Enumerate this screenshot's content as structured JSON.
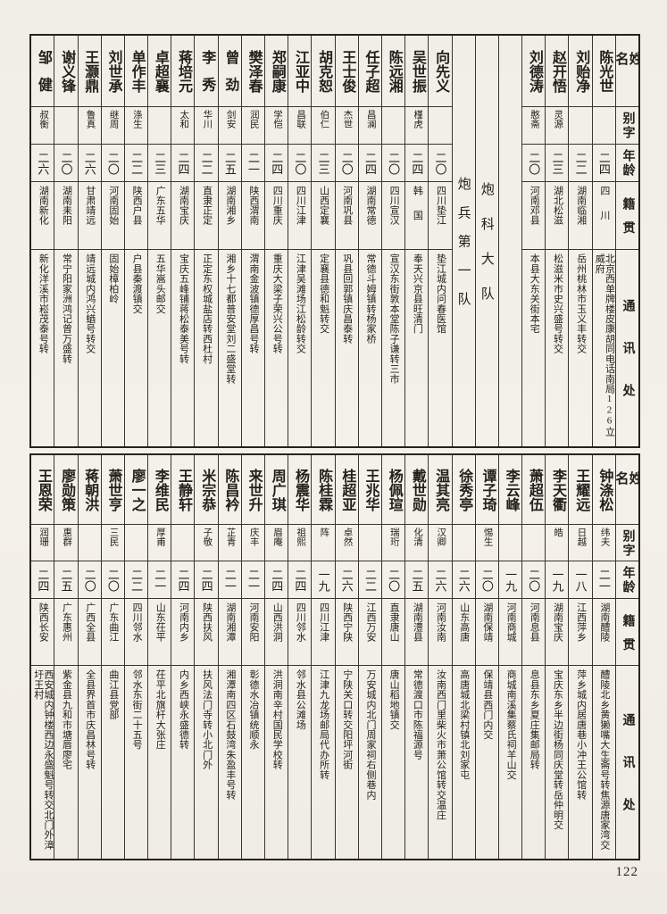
{
  "page": {
    "number": "122",
    "paper_color": "#f2efe8",
    "ink_color": "#24201b"
  },
  "column_headers": {
    "name": "姓名",
    "zi": "别字",
    "age": "年龄",
    "native": "籍贯",
    "contact": "通讯处"
  },
  "top_table": {
    "columns": [
      {
        "type": "entry",
        "name": "陈光世",
        "zi": "",
        "age": "二四",
        "native": "四川",
        "addr": "北京西单牌楼皮康胡同电话南局126立威府"
      },
      {
        "type": "entry",
        "name": "刘贻净",
        "zi": "",
        "age": "二二",
        "native": "湖南临湘",
        "addr": "岳州桃林市玉义丰转交"
      },
      {
        "type": "entry",
        "name": "赵开悟",
        "zi": "灵源",
        "age": "二三",
        "native": "湖北松滋",
        "addr": "松滋米市史兴盛号转交"
      },
      {
        "type": "entry",
        "name": "刘德涛",
        "zi": "憨斋",
        "age": "二〇",
        "native": "河南邓县",
        "addr": "本县大东关街本宅"
      },
      {
        "type": "spacer"
      },
      {
        "type": "section",
        "label": "炮科大队"
      },
      {
        "type": "section",
        "label": "炮兵第一队"
      },
      {
        "type": "entry",
        "name": "向先义",
        "zi": "",
        "age": "二〇",
        "native": "四川垫江",
        "addr": "垫江城内问春医馆"
      },
      {
        "type": "entry",
        "name": "吴世振",
        "zi": "槿虎",
        "age": "二四",
        "native": "韩国",
        "addr": "奉天兴京县旺清门"
      },
      {
        "type": "entry",
        "name": "陈远湘",
        "zi": "",
        "age": "二〇",
        "native": "四川宣汉",
        "addr": "宣汉东街敦本堂陈子谦转三市"
      },
      {
        "type": "entry",
        "name": "任子超",
        "zi": "昌澜",
        "age": "二四",
        "native": "湖南常德",
        "addr": "常德斗姆镇转杨家桥"
      },
      {
        "type": "entry",
        "name": "王士俊",
        "zi": "杰世",
        "age": "二〇",
        "native": "河南巩县",
        "addr": "巩县回郭镇庆昌泰转"
      },
      {
        "type": "entry",
        "name": "胡克恕",
        "zi": "伯仁",
        "age": "二三",
        "native": "山西定襄",
        "addr": "定襄县德和魁转交"
      },
      {
        "type": "entry",
        "name": "江亚中",
        "zi": "昌联",
        "age": "二〇",
        "native": "四川江津",
        "addr": "江津吴滩场江松龄转交"
      },
      {
        "type": "entry",
        "name": "郑嗣康",
        "zi": "学恺",
        "age": "二四",
        "native": "四川重庆",
        "addr": "重庆大梁子荣兴公号转"
      },
      {
        "type": "entry",
        "name": "樊泽春",
        "zi": "润民",
        "age": "二一",
        "native": "陕西渭南",
        "addr": "渭南金波镇德厚昌号转"
      },
      {
        "type": "entry",
        "name": "曾劲",
        "zi": "剑安",
        "age": "二五",
        "native": "湖南湘乡",
        "addr": "湘乡十七都普安堂刘二盛堂转"
      },
      {
        "type": "entry",
        "name": "李秀",
        "zi": "华川",
        "age": "二二",
        "native": "直隶正定",
        "addr": "正定东权城盐店转西杜村"
      },
      {
        "type": "entry",
        "name": "蒋培元",
        "zi": "太和",
        "age": "二四",
        "native": "湖南宝庆",
        "addr": "宝庆五峰铺蒋松泰美号转"
      },
      {
        "type": "entry",
        "name": "卓超襄",
        "zi": "",
        "age": "二三",
        "native": "广东五华",
        "addr": "五华嵩头邮交"
      },
      {
        "type": "entry",
        "name": "单作丰",
        "zi": "涤生",
        "age": "二二",
        "native": "陕西户县",
        "addr": "户县秦渡镇交"
      },
      {
        "type": "entry",
        "name": "刘世承",
        "zi": "继周",
        "age": "二〇",
        "native": "河南固始",
        "addr": "固始樟柏岭"
      },
      {
        "type": "entry",
        "name": "王灏鼎",
        "zi": "鲁真",
        "age": "二六",
        "native": "甘肃靖远",
        "addr": "靖远城内鸿兴蝤号转交"
      },
      {
        "type": "entry",
        "name": "谢义锋",
        "zi": "",
        "age": "二〇",
        "native": "湖南耒阳",
        "addr": "常宁阳家洲鸿记曾万盛转"
      },
      {
        "type": "entry",
        "name": "邹健",
        "zi": "叔衡",
        "age": "二六",
        "native": "湖南新化",
        "addr": "新化洋溪市崧茂泰号转"
      }
    ]
  },
  "bottom_table": {
    "columns": [
      {
        "type": "entry",
        "name": "钟涤松",
        "zi": "纬夫",
        "age": "二一",
        "native": "湖南醴陵",
        "addr": "醴陵北乡黄獭嘴大生斋号转焦源唐家湾交"
      },
      {
        "type": "entry",
        "name": "王耀远",
        "zi": "日越",
        "age": "一八",
        "native": "江西萍乡",
        "addr": "萍乡城内居唐巷小冲王公馆转"
      },
      {
        "type": "entry",
        "name": "李天衢",
        "zi": "皓",
        "age": "一九",
        "native": "湖南宝庆",
        "addr": "宝庆东乡半边街杨同庆堂转岳仲明交"
      },
      {
        "type": "entry",
        "name": "萧超伍",
        "zi": "",
        "age": "二〇",
        "native": "河南息县",
        "addr": "息县东乡夏庄集邮局转"
      },
      {
        "type": "entry",
        "name": "李云峰",
        "zi": "",
        "age": "一九",
        "native": "河南商城",
        "addr": "商城南溪集蔡氏祠羊山交"
      },
      {
        "type": "entry",
        "name": "谭子琦",
        "zi": "惕生",
        "age": "二〇",
        "native": "湖南保靖",
        "addr": "保靖县西门内交"
      },
      {
        "type": "entry",
        "name": "徐秀亭",
        "zi": "",
        "age": "二六",
        "native": "山东高唐",
        "addr": "高唐城北梁村镇北刘家屯"
      },
      {
        "type": "entry",
        "name": "温其亮",
        "zi": "汉卿",
        "age": "二六",
        "native": "河南汝南",
        "addr": "汝南西门里柴火市萧公馆转交温庄"
      },
      {
        "type": "entry",
        "name": "戴世勋",
        "zi": "化清",
        "age": "二五",
        "native": "湖南澧县",
        "addr": "常德渡口市陈福源号"
      },
      {
        "type": "entry",
        "name": "杨佩瑄",
        "zi": "瑞珩",
        "age": "二〇",
        "native": "直隶唐山",
        "addr": "唐山稻地镇交"
      },
      {
        "type": "entry",
        "name": "王兆华",
        "zi": "",
        "age": "二二",
        "native": "江西万安",
        "addr": "万安城内北门周家祠右侧巷内"
      },
      {
        "type": "entry",
        "name": "桂超亚",
        "zi": "卓然",
        "age": "二六",
        "native": "陕西宁陕",
        "addr": "宁陕关口转交阳坪河街"
      },
      {
        "type": "entry",
        "name": "陈桂霖",
        "zi": "阵",
        "age": "一九",
        "native": "四川江津",
        "addr": "江津九龙场邮局代办所转"
      },
      {
        "type": "entry",
        "name": "杨震华",
        "zi": "祖熙",
        "age": "二四",
        "native": "四川邻水",
        "addr": "邻水县公滩场"
      },
      {
        "type": "entry",
        "name": "周广琪",
        "zi": "眉庵",
        "age": "二四",
        "native": "山西洪洞",
        "addr": "洪洞南辛村国民学校转"
      },
      {
        "type": "entry",
        "name": "来世升",
        "zi": "庆丰",
        "age": "二一",
        "native": "河南安阳",
        "addr": "彰德水冶镇统顺永"
      },
      {
        "type": "entry",
        "name": "陈昌衿",
        "zi": "芷青",
        "age": "二一",
        "native": "湖南湘潭",
        "addr": "湘潭南四区石鼓湾朱盈丰号转"
      },
      {
        "type": "entry",
        "name": "米宗恭",
        "zi": "子敬",
        "age": "二四",
        "native": "陕西扶风",
        "addr": "扶风法门寺转小北门外"
      },
      {
        "type": "entry",
        "name": "王静轩",
        "zi": "",
        "age": "二四",
        "native": "河南内乡",
        "addr": "内乡西峡永盛德转"
      },
      {
        "type": "entry",
        "name": "李维民",
        "zi": "厚甫",
        "age": "二一",
        "native": "山东茌平",
        "addr": "茌平北旗杆大张庄"
      },
      {
        "type": "entry",
        "name": "廖一之",
        "zi": "",
        "age": "二二",
        "native": "四川邻水",
        "addr": "邻水东街二十五号"
      },
      {
        "type": "entry",
        "name": "萧世亨",
        "zi": "三民",
        "age": "二〇",
        "native": "广东曲江",
        "addr": "曲江县党部"
      },
      {
        "type": "entry",
        "name": "蒋朝洪",
        "zi": "",
        "age": "二〇",
        "native": "广西全县",
        "addr": "全县界首市庆昌林号转"
      },
      {
        "type": "entry",
        "name": "廖勋策",
        "zi": "惠群",
        "age": "二五",
        "native": "广东惠州",
        "addr": "紫金县九和市塘唇廖宅"
      },
      {
        "type": "entry",
        "name": "王恩荣",
        "zi": "润珊",
        "age": "二四",
        "native": "陕西长安",
        "addr": "西安城内钟楼西边永盛魁号转交北门外漳圩王村"
      }
    ]
  }
}
